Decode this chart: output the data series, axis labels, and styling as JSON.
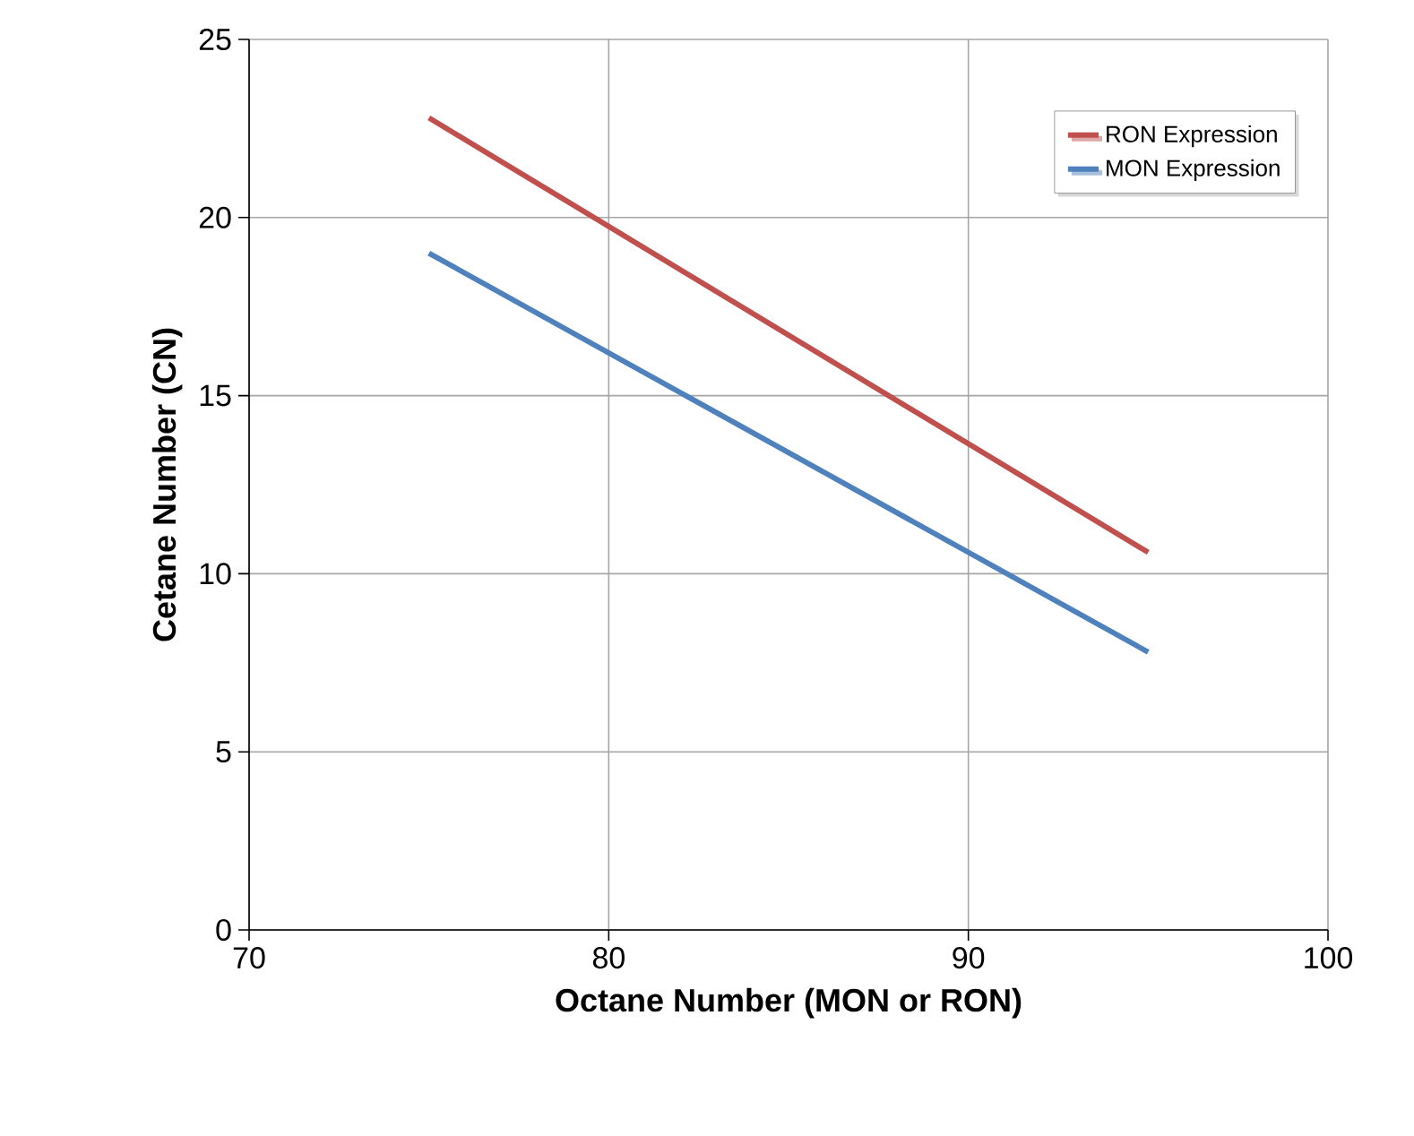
{
  "chart_data": {
    "type": "line",
    "xlabel": "Octane Number (MON or RON)",
    "ylabel": "Cetane Number (CN)",
    "x": [
      75,
      95
    ],
    "series": [
      {
        "name": "RON Expression",
        "color": "#c0504d",
        "values": [
          22.8,
          10.6
        ]
      },
      {
        "name": "MON Expression",
        "color": "#4f81bd",
        "values": [
          19.0,
          7.8
        ]
      }
    ],
    "xlim": [
      70,
      100
    ],
    "ylim": [
      0,
      25
    ],
    "xticks": [
      70,
      80,
      90,
      100
    ],
    "yticks": [
      0,
      5,
      10,
      15,
      20,
      25
    ],
    "grid": true,
    "legend": "top right",
    "marker": "none",
    "line_style": "solid"
  }
}
